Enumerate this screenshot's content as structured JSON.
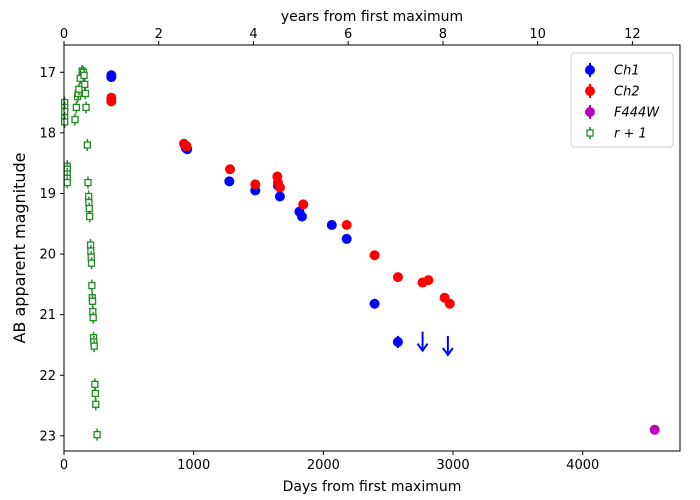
{
  "chart_data": {
    "type": "scatter",
    "title": "",
    "xlabel": "Days from first maximum",
    "ylabel": "AB apparent magnitude",
    "x2label": "years from first maximum",
    "xlim": [
      0,
      4750
    ],
    "ylim": [
      23.25,
      16.55
    ],
    "y_inverted": true,
    "xticks": [
      0,
      1000,
      2000,
      3000,
      4000
    ],
    "x2ticks": [
      0,
      2,
      4,
      6,
      8,
      10,
      12
    ],
    "yticks": [
      17,
      18,
      19,
      20,
      21,
      22,
      23
    ],
    "days_per_year": 365.25,
    "legend_position": "top-right",
    "series": [
      {
        "name": "Ch1",
        "legend_label": "Ch1",
        "color": "#0000ff",
        "marker": "circle",
        "points": [
          {
            "x": 365,
            "y": 17.05
          },
          {
            "x": 365,
            "y": 17.08
          },
          {
            "x": 940,
            "y": 18.25
          },
          {
            "x": 950,
            "y": 18.27
          },
          {
            "x": 1275,
            "y": 18.8
          },
          {
            "x": 1475,
            "y": 18.95
          },
          {
            "x": 1650,
            "y": 18.87
          },
          {
            "x": 1665,
            "y": 19.05
          },
          {
            "x": 1815,
            "y": 19.3
          },
          {
            "x": 1835,
            "y": 19.38
          },
          {
            "x": 2065,
            "y": 19.52
          },
          {
            "x": 2180,
            "y": 19.75
          },
          {
            "x": 2395,
            "y": 20.82
          },
          {
            "x": 2575,
            "y": 21.45,
            "yerr": 0.1
          }
        ],
        "upper_limits": [
          {
            "x": 2765,
            "y": 21.38
          },
          {
            "x": 2960,
            "y": 21.45
          }
        ]
      },
      {
        "name": "Ch2",
        "legend_label": "Ch2",
        "color": "#ff0000",
        "marker": "circle",
        "points": [
          {
            "x": 365,
            "y": 17.42
          },
          {
            "x": 365,
            "y": 17.48
          },
          {
            "x": 925,
            "y": 18.18
          },
          {
            "x": 945,
            "y": 18.22
          },
          {
            "x": 1280,
            "y": 18.6
          },
          {
            "x": 1475,
            "y": 18.85
          },
          {
            "x": 1645,
            "y": 18.72
          },
          {
            "x": 1650,
            "y": 18.82
          },
          {
            "x": 1665,
            "y": 18.9
          },
          {
            "x": 1845,
            "y": 19.18
          },
          {
            "x": 2180,
            "y": 19.52
          },
          {
            "x": 2395,
            "y": 20.02
          },
          {
            "x": 2575,
            "y": 20.38
          },
          {
            "x": 2765,
            "y": 20.47
          },
          {
            "x": 2810,
            "y": 20.43
          },
          {
            "x": 2935,
            "y": 20.72
          },
          {
            "x": 2975,
            "y": 20.82
          }
        ]
      },
      {
        "name": "F444W",
        "legend_label": "F444W",
        "color": "#bf00bf",
        "marker": "circle",
        "points": [
          {
            "x": 4555,
            "y": 22.9
          }
        ]
      },
      {
        "name": "r + 1",
        "legend_label": "r + 1",
        "color": "#228b22",
        "marker": "open-square",
        "points": [
          {
            "x": 5,
            "y": 17.5
          },
          {
            "x": 5,
            "y": 17.58
          },
          {
            "x": 5,
            "y": 17.65
          },
          {
            "x": 5,
            "y": 17.75
          },
          {
            "x": 5,
            "y": 17.82
          },
          {
            "x": 25,
            "y": 18.55
          },
          {
            "x": 25,
            "y": 18.6
          },
          {
            "x": 25,
            "y": 18.68
          },
          {
            "x": 25,
            "y": 18.75
          },
          {
            "x": 25,
            "y": 18.82
          },
          {
            "x": 85,
            "y": 17.78
          },
          {
            "x": 95,
            "y": 17.58
          },
          {
            "x": 105,
            "y": 17.4
          },
          {
            "x": 110,
            "y": 17.35
          },
          {
            "x": 115,
            "y": 17.28
          },
          {
            "x": 125,
            "y": 17.1
          },
          {
            "x": 140,
            "y": 16.98
          },
          {
            "x": 150,
            "y": 17.0
          },
          {
            "x": 155,
            "y": 17.05
          },
          {
            "x": 160,
            "y": 17.2
          },
          {
            "x": 165,
            "y": 17.35
          },
          {
            "x": 170,
            "y": 17.58
          },
          {
            "x": 180,
            "y": 18.2
          },
          {
            "x": 185,
            "y": 18.82
          },
          {
            "x": 190,
            "y": 19.05
          },
          {
            "x": 192,
            "y": 19.15
          },
          {
            "x": 195,
            "y": 19.25
          },
          {
            "x": 198,
            "y": 19.38
          },
          {
            "x": 205,
            "y": 19.85
          },
          {
            "x": 207,
            "y": 19.95
          },
          {
            "x": 210,
            "y": 20.05
          },
          {
            "x": 212,
            "y": 20.15
          },
          {
            "x": 215,
            "y": 20.52
          },
          {
            "x": 218,
            "y": 20.72
          },
          {
            "x": 220,
            "y": 20.78
          },
          {
            "x": 222,
            "y": 20.95
          },
          {
            "x": 225,
            "y": 21.05
          },
          {
            "x": 228,
            "y": 21.38
          },
          {
            "x": 230,
            "y": 21.45
          },
          {
            "x": 233,
            "y": 21.52
          },
          {
            "x": 238,
            "y": 22.15
          },
          {
            "x": 242,
            "y": 22.3
          },
          {
            "x": 245,
            "y": 22.48
          },
          {
            "x": 255,
            "y": 22.98
          }
        ]
      }
    ]
  }
}
